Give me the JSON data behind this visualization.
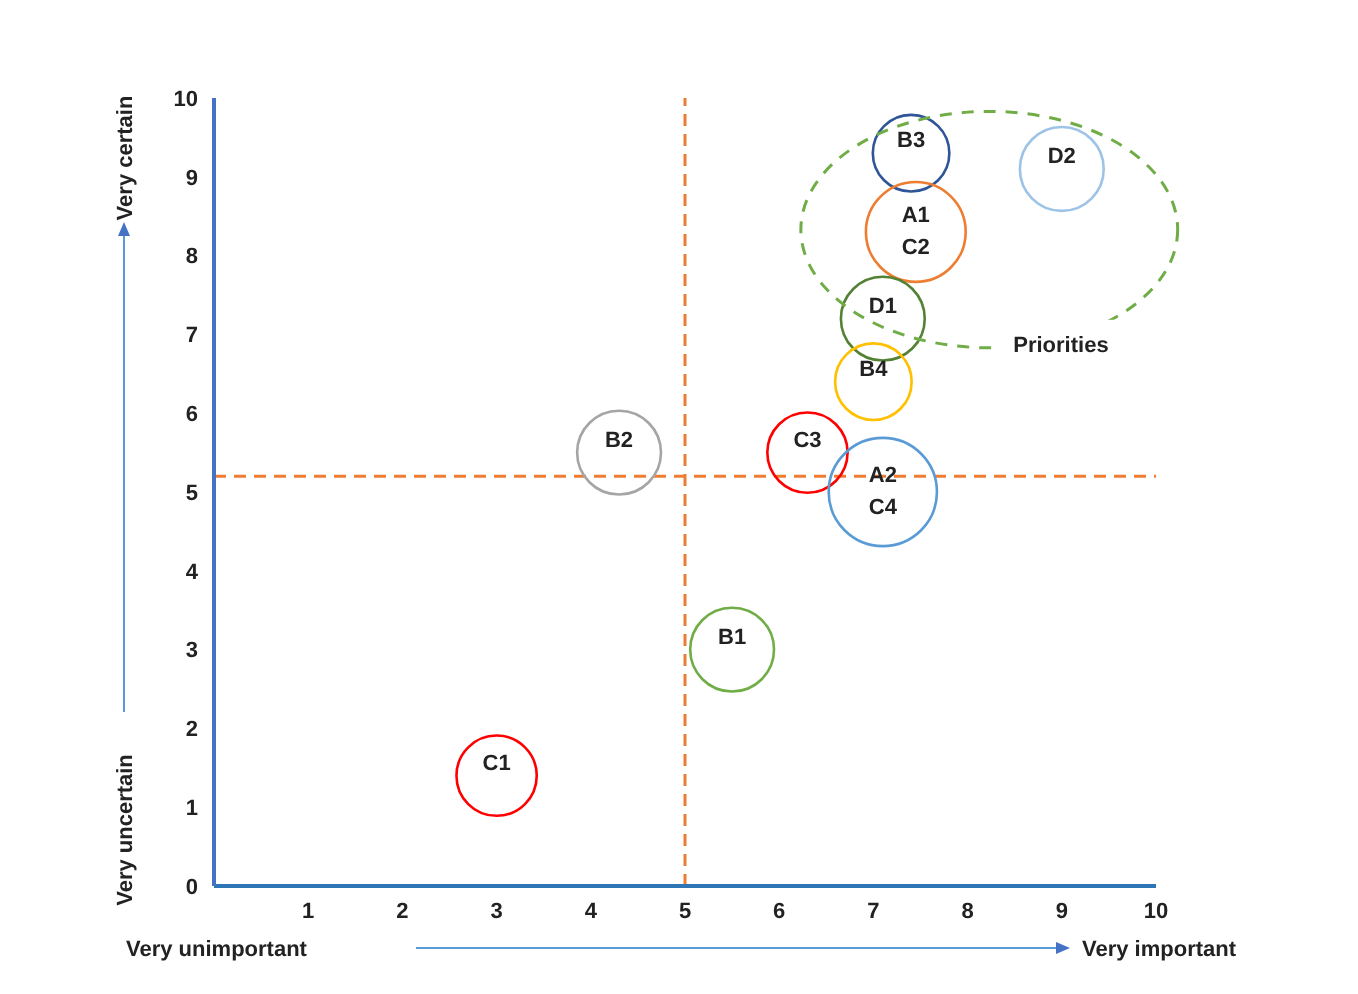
{
  "chart_data": {
    "type": "bubble",
    "xlabel": "Very unimportant",
    "ylabel": "Very uncertain",
    "annotations": [
      "Very important",
      "Very certain",
      "Priorities"
    ],
    "x": [
      7.4,
      9.0,
      7.45,
      7.1,
      7.0,
      6.3,
      7.1,
      4.3,
      5.5,
      3.0
    ],
    "values": [
      9.3,
      9.1,
      8.3,
      7.2,
      6.4,
      5.5,
      5.0,
      5.5,
      3.0,
      1.4
    ],
    "sizes": [
      0.5,
      0.6,
      0.85,
      0.6,
      0.5,
      0.55,
      1,
      0.6,
      0.6,
      0.55
    ],
    "value_labels": [
      "B3",
      "D2",
      "A1\nC2",
      "D1",
      "B4",
      "C3",
      "A2\nC4",
      "B2",
      "B1",
      "C1"
    ],
    "colors": [
      "#2f5597",
      "#9dc3e6",
      "#ed7d31",
      "#548235",
      "#ffc000",
      "#ff0000",
      "#5b9bd5",
      "#a5a5a5",
      "#70ad47",
      "#ff0000"
    ],
    "xlim": [
      0,
      10
    ],
    "xticks": [
      1,
      2,
      3,
      4,
      5,
      6,
      7,
      8,
      9,
      10
    ],
    "ylim": [
      0,
      10
    ],
    "yticks": [
      0,
      1,
      2,
      3,
      4,
      5,
      6,
      7,
      8,
      9,
      10
    ],
    "ref_lines": [
      {
        "axis": "x",
        "value": 5,
        "color": "#ed7d31",
        "line_style": "dashed"
      },
      {
        "axis": "y",
        "value": 5.2,
        "color": "#ed7d31",
        "line_style": "dashed"
      }
    ],
    "grid": false,
    "legend": false
  }
}
